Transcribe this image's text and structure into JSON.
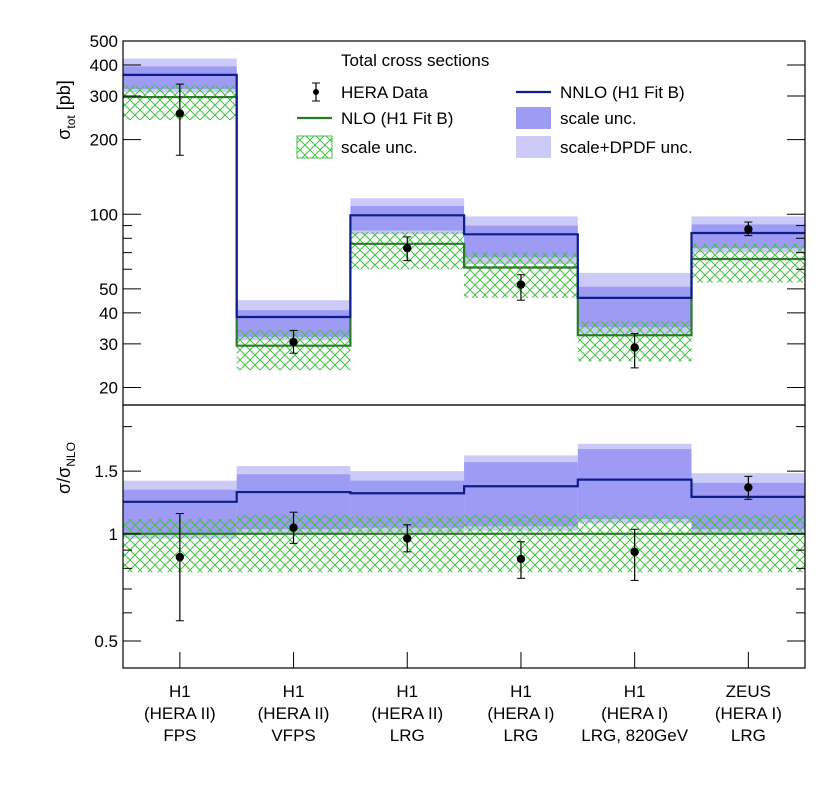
{
  "chart_data": [
    {
      "panel": "top",
      "type": "bar",
      "scale": "log",
      "title": "Total cross sections",
      "ylabel": "σ_tot [pb]",
      "ylabel_main": "σ",
      "ylabel_sub": "tot",
      "ylabel_unit": " [pb]",
      "ylim": [
        17,
        500
      ],
      "yticks": [
        20,
        30,
        40,
        50,
        100,
        200,
        300,
        400,
        500
      ],
      "ytick_labels": [
        "20",
        "30",
        "40",
        "50",
        "100",
        "200",
        "300",
        "400",
        "500"
      ],
      "legend": {
        "data": "HERA Data",
        "nlo": "NLO (H1 Fit B)",
        "nlo_unc": "scale unc.",
        "nnlo": "NNLO (H1 Fit B)",
        "nnlo_scale": "scale unc.",
        "nnlo_dpdf": "scale+DPDF unc."
      },
      "series": [
        {
          "name": "HERA Data",
          "values": [
            255,
            30.5,
            73,
            52,
            29,
            87
          ],
          "err_low": [
            173,
            27.5,
            65,
            45,
            24,
            82
          ],
          "err_high": [
            335,
            34,
            81,
            57,
            33,
            93
          ]
        },
        {
          "name": "NLO (H1 Fit B)",
          "values": [
            297,
            29.5,
            76,
            61,
            32.5,
            66
          ],
          "band_low": [
            240,
            23.5,
            60,
            46,
            25.5,
            53
          ],
          "band_high": [
            330,
            34,
            85,
            70,
            37,
            76
          ]
        },
        {
          "name": "NNLO (H1 Fit B)",
          "values": [
            365,
            38.5,
            99,
            83,
            46,
            84
          ],
          "scale_low": [
            320,
            32,
            86,
            67,
            35,
            73
          ],
          "scale_high": [
            395,
            41,
            108,
            90,
            51,
            91
          ],
          "dpdf_low": [
            310,
            31,
            83,
            63,
            33,
            70
          ],
          "dpdf_high": [
            425,
            45,
            116,
            98,
            58,
            98
          ]
        }
      ]
    },
    {
      "panel": "bottom",
      "type": "bar",
      "scale": "log",
      "ylabel": "σ/σ_NLO",
      "ylabel_main": "σ/σ",
      "ylabel_sub": "NLO",
      "ylim": [
        0.42,
        2.3
      ],
      "yticks": [
        0.5,
        1,
        1.5
      ],
      "ytick_labels": [
        "0.5",
        "1",
        "1.5"
      ],
      "categories": [
        "H1 (HERA II) FPS",
        "H1 (HERA II) VFPS",
        "H1 (HERA II) LRG",
        "H1 (HERA I) LRG",
        "H1 (HERA I) LRG, 820GeV",
        "ZEUS (HERA I) LRG"
      ],
      "category_lines": [
        [
          "H1",
          "(HERA II)",
          "FPS"
        ],
        [
          "H1",
          "(HERA II)",
          "VFPS"
        ],
        [
          "H1",
          "(HERA II)",
          "LRG"
        ],
        [
          "H1",
          "(HERA I)",
          "LRG"
        ],
        [
          "H1",
          "(HERA I)",
          "LRG, 820GeV"
        ],
        [
          "ZEUS",
          "(HERA I)",
          "LRG"
        ]
      ],
      "series": [
        {
          "name": "HERA Data / NLO",
          "values": [
            0.86,
            1.04,
            0.97,
            0.85,
            0.89,
            1.35
          ],
          "err_low": [
            0.57,
            0.94,
            0.89,
            0.75,
            0.74,
            1.25
          ],
          "err_high": [
            1.14,
            1.15,
            1.06,
            0.95,
            1.03,
            1.45
          ]
        },
        {
          "name": "NLO",
          "values": [
            1,
            1,
            1,
            1,
            1,
            1
          ],
          "band_low": [
            0.78,
            0.78,
            0.78,
            0.78,
            0.78,
            0.78
          ],
          "band_high": [
            1.1,
            1.13,
            1.12,
            1.13,
            1.13,
            1.13
          ]
        },
        {
          "name": "NNLO / NLO",
          "values": [
            1.23,
            1.31,
            1.3,
            1.36,
            1.42,
            1.27
          ],
          "scale_low": [
            1.0,
            1.03,
            1.04,
            1.05,
            1.1,
            1.03
          ],
          "scale_high": [
            1.33,
            1.47,
            1.41,
            1.59,
            1.73,
            1.39
          ],
          "dpdf_low": [
            0.97,
            1.0,
            1.01,
            1.02,
            1.07,
            1.0
          ],
          "dpdf_high": [
            1.41,
            1.55,
            1.5,
            1.66,
            1.79,
            1.48
          ]
        }
      ]
    }
  ],
  "colors": {
    "nnlo_line": "#0d1d8c",
    "nnlo_scale": "#9d9bf3",
    "nnlo_dpdf": "#cccbf8",
    "nlo_line": "#2a7a2a",
    "nlo_hatch": "#44c044",
    "data": "#000000"
  }
}
